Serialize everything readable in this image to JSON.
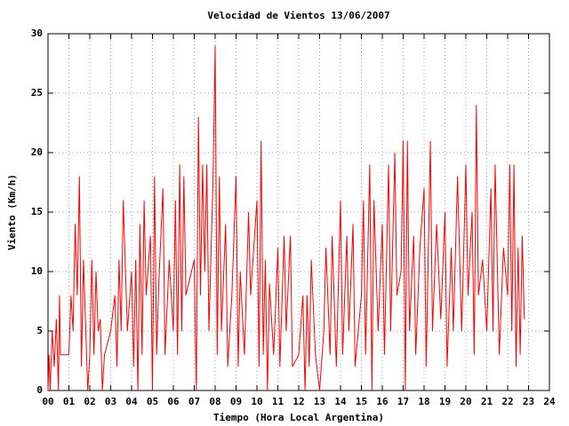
{
  "chart_data": {
    "type": "line",
    "title": "Velocidad de Vientos 13/06/2007",
    "x_label": "Tiempo (Hora Local Argentina)",
    "y_label": "Viento (Km/h)",
    "grid": true,
    "xlim": [
      0,
      24
    ],
    "ylim": [
      0,
      30
    ],
    "xticks": [
      {
        "value": 0,
        "label": "00"
      },
      {
        "value": 1,
        "label": "01"
      },
      {
        "value": 2,
        "label": "02"
      },
      {
        "value": 3,
        "label": "03"
      },
      {
        "value": 4,
        "label": "04"
      },
      {
        "value": 5,
        "label": "05"
      },
      {
        "value": 6,
        "label": "06"
      },
      {
        "value": 7,
        "label": "07"
      },
      {
        "value": 8,
        "label": "08"
      },
      {
        "value": 9,
        "label": "09"
      },
      {
        "value": 10,
        "label": "10"
      },
      {
        "value": 11,
        "label": "11"
      },
      {
        "value": 12,
        "label": "12"
      },
      {
        "value": 13,
        "label": "13"
      },
      {
        "value": 14,
        "label": "14"
      },
      {
        "value": 15,
        "label": "15"
      },
      {
        "value": 16,
        "label": "16"
      },
      {
        "value": 17,
        "label": "17"
      },
      {
        "value": 18,
        "label": "18"
      },
      {
        "value": 19,
        "label": "19"
      },
      {
        "value": 20,
        "label": "20"
      },
      {
        "value": 21,
        "label": "21"
      },
      {
        "value": 22,
        "label": "22"
      },
      {
        "value": 23,
        "label": "23"
      },
      {
        "value": 24,
        "label": "24"
      }
    ],
    "yticks": [
      0,
      5,
      10,
      15,
      20,
      25,
      30
    ],
    "series": [
      {
        "color": "#ff0000",
        "x": [
          0.0,
          0.05,
          0.1,
          0.2,
          0.3,
          0.4,
          0.5,
          0.55,
          0.6,
          0.7,
          1.0,
          1.1,
          1.2,
          1.3,
          1.4,
          1.5,
          1.6,
          1.7,
          1.9,
          2.0,
          2.1,
          2.2,
          2.3,
          2.4,
          2.5,
          2.6,
          2.7,
          3.0,
          3.2,
          3.3,
          3.4,
          3.5,
          3.6,
          3.8,
          4.0,
          4.1,
          4.2,
          4.3,
          4.4,
          4.5,
          4.6,
          4.7,
          4.9,
          5.0,
          5.1,
          5.2,
          5.3,
          5.5,
          5.6,
          5.8,
          6.0,
          6.1,
          6.2,
          6.3,
          6.4,
          6.5,
          6.6,
          7.0,
          7.1,
          7.2,
          7.3,
          7.4,
          7.5,
          7.6,
          7.7,
          7.9,
          8.0,
          8.1,
          8.2,
          8.3,
          8.5,
          8.6,
          8.8,
          9.0,
          9.1,
          9.2,
          9.4,
          9.6,
          9.7,
          10.0,
          10.1,
          10.2,
          10.3,
          10.4,
          10.5,
          10.6,
          10.8,
          11.0,
          11.1,
          11.3,
          11.4,
          11.6,
          11.7,
          12.0,
          12.2,
          12.3,
          12.4,
          12.5,
          12.6,
          12.8,
          13.0,
          13.2,
          13.3,
          13.5,
          13.6,
          13.8,
          14.0,
          14.1,
          14.3,
          14.4,
          14.6,
          14.7,
          15.0,
          15.1,
          15.2,
          15.4,
          15.5,
          15.6,
          15.8,
          16.0,
          16.1,
          16.3,
          16.4,
          16.6,
          16.7,
          16.9,
          17.0,
          17.1,
          17.2,
          17.3,
          17.5,
          17.6,
          17.8,
          18.0,
          18.1,
          18.3,
          18.4,
          18.6,
          18.8,
          19.0,
          19.1,
          19.3,
          19.4,
          19.6,
          19.8,
          20.0,
          20.1,
          20.3,
          20.4,
          20.5,
          20.6,
          20.8,
          21.0,
          21.2,
          21.3,
          21.4,
          21.6,
          21.8,
          22.0,
          22.1,
          22.2,
          22.3,
          22.4,
          22.5,
          22.6,
          22.7,
          22.8
        ],
        "values": [
          0,
          3,
          0,
          5,
          2,
          6,
          0,
          8,
          3,
          3,
          3,
          8,
          5,
          14,
          8,
          18,
          2,
          11,
          0,
          3,
          11,
          3,
          10,
          5,
          6,
          0,
          3,
          5,
          8,
          2,
          11,
          5,
          16,
          5,
          10,
          2,
          11,
          0,
          14,
          3,
          16,
          8,
          13,
          0,
          18,
          3,
          9,
          17,
          3,
          11,
          5,
          16,
          3,
          19,
          5,
          18,
          8,
          11,
          0,
          23,
          8,
          19,
          10,
          19,
          5,
          18,
          29,
          3,
          18,
          5,
          14,
          2,
          8,
          18,
          2,
          10,
          3,
          15,
          8,
          16,
          2,
          21,
          3,
          11,
          0,
          9,
          3,
          12,
          2,
          13,
          5,
          13,
          2,
          3,
          8,
          0,
          8,
          2,
          11,
          3,
          0,
          5,
          12,
          3,
          13,
          2,
          16,
          3,
          13,
          5,
          14,
          2,
          8,
          16,
          3,
          19,
          0,
          16,
          5,
          14,
          3,
          19,
          5,
          20,
          8,
          10,
          21,
          0,
          21,
          5,
          13,
          3,
          12,
          17,
          2,
          21,
          5,
          14,
          6,
          15,
          2,
          12,
          5,
          18,
          5,
          19,
          8,
          15,
          3,
          24,
          8,
          11,
          5,
          17,
          5,
          19,
          3,
          12,
          8,
          19,
          5,
          19,
          2,
          12,
          3,
          13,
          6
        ]
      }
    ]
  }
}
